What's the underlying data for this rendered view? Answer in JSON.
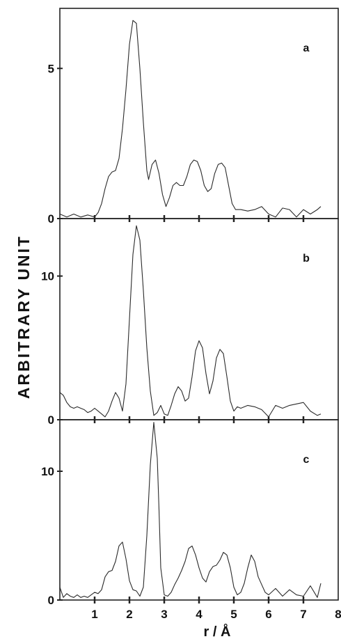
{
  "figure": {
    "ylabel": "ARBITRARY UNIT",
    "xlabel": "r / Å",
    "x_ticks": [
      "1",
      "2",
      "3",
      "4",
      "5",
      "6",
      "7",
      "8"
    ]
  },
  "chart_data": [
    {
      "type": "line",
      "panel": "a",
      "xlim": [
        0,
        8
      ],
      "ylim": [
        0,
        7
      ],
      "y_ticks": [
        {
          "value": 0,
          "label": "0"
        },
        {
          "value": 5,
          "label": "5"
        }
      ],
      "x": [
        0,
        0.2,
        0.4,
        0.6,
        0.8,
        1.0,
        1.1,
        1.2,
        1.3,
        1.4,
        1.5,
        1.6,
        1.7,
        1.8,
        1.9,
        2.0,
        2.1,
        2.2,
        2.3,
        2.4,
        2.5,
        2.55,
        2.65,
        2.75,
        2.85,
        2.95,
        3.05,
        3.15,
        3.25,
        3.35,
        3.45,
        3.55,
        3.65,
        3.75,
        3.85,
        3.95,
        4.05,
        4.15,
        4.25,
        4.35,
        4.45,
        4.55,
        4.65,
        4.75,
        4.85,
        4.95,
        5.05,
        5.2,
        5.4,
        5.6,
        5.8,
        6.0,
        6.2,
        6.4,
        6.6,
        6.8,
        7.0,
        7.2,
        7.4,
        7.5
      ],
      "y": [
        0.15,
        0.05,
        0.15,
        0.05,
        0.12,
        0.05,
        0.2,
        0.5,
        1.0,
        1.4,
        1.55,
        1.6,
        2.0,
        3.0,
        4.3,
        5.8,
        6.6,
        6.5,
        5.0,
        3.2,
        1.6,
        1.3,
        1.8,
        1.95,
        1.5,
        0.8,
        0.4,
        0.7,
        1.1,
        1.2,
        1.1,
        1.1,
        1.4,
        1.8,
        1.95,
        1.9,
        1.6,
        1.1,
        0.9,
        1.0,
        1.5,
        1.8,
        1.85,
        1.7,
        1.1,
        0.5,
        0.3,
        0.3,
        0.25,
        0.3,
        0.4,
        0.15,
        0.05,
        0.35,
        0.3,
        0.05,
        0.3,
        0.15,
        0.3,
        0.4
      ]
    },
    {
      "type": "line",
      "panel": "b",
      "xlim": [
        0,
        8
      ],
      "ylim": [
        0,
        14
      ],
      "y_ticks": [
        {
          "value": 0,
          "label": "0"
        },
        {
          "value": 10,
          "label": "10"
        }
      ],
      "x": [
        0,
        0.1,
        0.2,
        0.3,
        0.4,
        0.5,
        0.6,
        0.7,
        0.8,
        0.9,
        1.0,
        1.1,
        1.2,
        1.3,
        1.4,
        1.5,
        1.6,
        1.7,
        1.8,
        1.9,
        2.0,
        2.1,
        2.2,
        2.3,
        2.4,
        2.5,
        2.6,
        2.7,
        2.8,
        2.9,
        3.0,
        3.1,
        3.2,
        3.3,
        3.4,
        3.5,
        3.6,
        3.7,
        3.8,
        3.9,
        4.0,
        4.1,
        4.2,
        4.3,
        4.4,
        4.5,
        4.6,
        4.7,
        4.8,
        4.9,
        5.0,
        5.1,
        5.2,
        5.4,
        5.6,
        5.8,
        6.0,
        6.2,
        6.4,
        6.6,
        6.8,
        7.0,
        7.2,
        7.4,
        7.5
      ],
      "y": [
        1.9,
        1.7,
        1.2,
        0.9,
        0.8,
        0.9,
        0.8,
        0.7,
        0.5,
        0.6,
        0.8,
        0.6,
        0.4,
        0.2,
        0.6,
        1.3,
        1.9,
        1.5,
        0.6,
        2.5,
        7.0,
        11.5,
        13.5,
        12.5,
        9.0,
        5.0,
        2.0,
        0.3,
        0.5,
        1.0,
        0.4,
        0.3,
        1.0,
        1.8,
        2.3,
        2.0,
        1.3,
        1.5,
        3.0,
        4.8,
        5.5,
        5.0,
        3.2,
        1.8,
        2.7,
        4.3,
        4.9,
        4.6,
        3.0,
        1.3,
        0.6,
        0.9,
        0.8,
        1.0,
        0.9,
        0.7,
        0.2,
        1.0,
        0.8,
        1.0,
        1.1,
        1.2,
        0.6,
        0.3,
        0.4
      ]
    },
    {
      "type": "line",
      "panel": "c",
      "xlim": [
        0,
        8
      ],
      "ylim": [
        0,
        14
      ],
      "y_ticks": [
        {
          "value": 0,
          "label": "0"
        },
        {
          "value": 10,
          "label": "10"
        }
      ],
      "x": [
        0,
        0.1,
        0.2,
        0.3,
        0.4,
        0.5,
        0.6,
        0.7,
        0.8,
        0.9,
        1.0,
        1.1,
        1.2,
        1.3,
        1.4,
        1.5,
        1.6,
        1.7,
        1.8,
        1.9,
        2.0,
        2.1,
        2.2,
        2.3,
        2.4,
        2.5,
        2.6,
        2.7,
        2.8,
        2.85,
        2.9,
        3.0,
        3.1,
        3.2,
        3.3,
        3.4,
        3.5,
        3.6,
        3.7,
        3.8,
        3.9,
        4.0,
        4.1,
        4.2,
        4.3,
        4.4,
        4.5,
        4.6,
        4.7,
        4.8,
        4.9,
        5.0,
        5.1,
        5.2,
        5.3,
        5.4,
        5.5,
        5.6,
        5.7,
        5.8,
        5.9,
        6.0,
        6.2,
        6.4,
        6.6,
        6.8,
        7.0,
        7.2,
        7.4,
        7.5
      ],
      "y": [
        1.0,
        0.2,
        0.5,
        0.3,
        0.2,
        0.4,
        0.2,
        0.3,
        0.2,
        0.4,
        0.6,
        0.5,
        0.8,
        1.8,
        2.2,
        2.3,
        3.0,
        4.2,
        4.5,
        3.2,
        1.5,
        0.8,
        0.7,
        0.3,
        1.0,
        5.0,
        10.5,
        13.8,
        11.0,
        7.0,
        2.5,
        0.4,
        0.3,
        0.6,
        1.2,
        1.7,
        2.3,
        3.0,
        4.0,
        4.2,
        3.5,
        2.5,
        1.7,
        1.4,
        2.2,
        2.6,
        2.7,
        3.1,
        3.7,
        3.5,
        2.5,
        1.0,
        0.4,
        0.6,
        1.3,
        2.5,
        3.5,
        3.0,
        1.8,
        1.2,
        0.6,
        0.4,
        0.9,
        0.3,
        0.8,
        0.4,
        0.3,
        1.1,
        0.2,
        1.3
      ]
    }
  ],
  "panels": [
    {
      "letter": "a"
    },
    {
      "letter": "b"
    },
    {
      "letter": "c"
    }
  ]
}
